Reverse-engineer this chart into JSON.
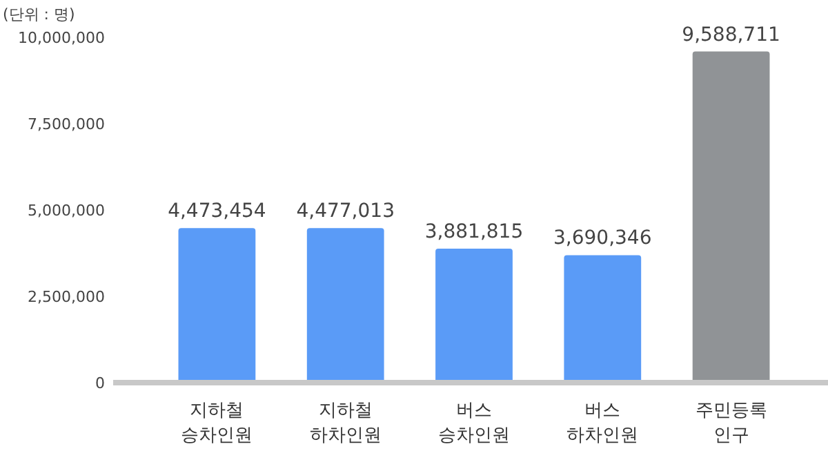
{
  "chart_data": {
    "type": "bar",
    "categories": [
      "지하철\n승차인원",
      "지하철\n하차인원",
      "버스\n승차인원",
      "버스\n하차인원",
      "주민등록\n인구"
    ],
    "values": [
      4473454,
      4477013,
      3881815,
      3690346,
      9588711
    ],
    "colors": [
      "#5a9bf7",
      "#5a9bf7",
      "#5a9bf7",
      "#5a9bf7",
      "#909396"
    ],
    "ylim": [
      0,
      10000000
    ],
    "yticks": [
      {
        "value": 0,
        "label": "0"
      },
      {
        "value": 2500000,
        "label": "2,500,000"
      },
      {
        "value": 5000000,
        "label": "5,000,000"
      },
      {
        "value": 7500000,
        "label": "7,500,000"
      },
      {
        "value": 10000000,
        "label": "10,000,000"
      }
    ],
    "value_labels": [
      "4,473,454",
      "4,477,013",
      "3,881,815",
      "3,690,346",
      "9,588,711"
    ],
    "grid": false,
    "annotations": [
      "(단위 : 명)"
    ]
  }
}
